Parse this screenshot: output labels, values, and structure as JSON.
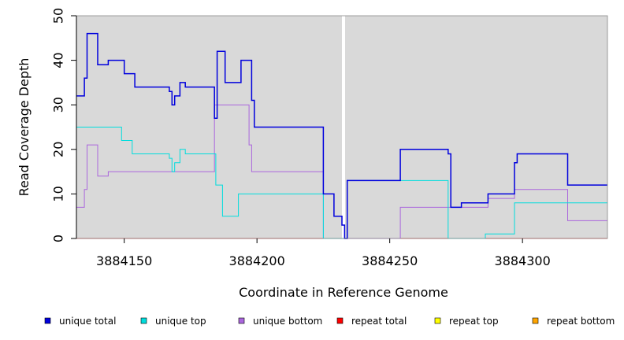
{
  "chart_data": {
    "type": "line",
    "xlabel": "Coordinate in Reference Genome",
    "ylabel": "Read Coverage Depth",
    "xlim": [
      3884132,
      3884332
    ],
    "ylim": [
      0,
      50
    ],
    "x_ticks": [
      3884150,
      3884200,
      3884250,
      3884300
    ],
    "y_ticks": [
      0,
      10,
      20,
      30,
      40,
      50
    ],
    "marker_x": 3884232,
    "background": "#d9d9d9",
    "legend_position": "bottom",
    "series": [
      {
        "name": "unique total",
        "color": "#0000dd",
        "points": [
          [
            3884132,
            32
          ],
          [
            3884135,
            36
          ],
          [
            3884136,
            46
          ],
          [
            3884139,
            46
          ],
          [
            3884140,
            39
          ],
          [
            3884143,
            39
          ],
          [
            3884144,
            40
          ],
          [
            3884149,
            40
          ],
          [
            3884150,
            37
          ],
          [
            3884153,
            37
          ],
          [
            3884154,
            34
          ],
          [
            3884166,
            34
          ],
          [
            3884167,
            33
          ],
          [
            3884168,
            30
          ],
          [
            3884169,
            32
          ],
          [
            3884171,
            35
          ],
          [
            3884173,
            34
          ],
          [
            3884183,
            34
          ],
          [
            3884184,
            27
          ],
          [
            3884185,
            42
          ],
          [
            3884187,
            42
          ],
          [
            3884188,
            35
          ],
          [
            3884192,
            35
          ],
          [
            3884194,
            40
          ],
          [
            3884197,
            40
          ],
          [
            3884198,
            31
          ],
          [
            3884199,
            25
          ],
          [
            3884211,
            25
          ],
          [
            3884224,
            25
          ],
          [
            3884225,
            10
          ],
          [
            3884228,
            10
          ],
          [
            3884229,
            5
          ],
          [
            3884231,
            5
          ],
          [
            3884232,
            3
          ],
          [
            3884233,
            0
          ],
          [
            3884234,
            13
          ],
          [
            3884249,
            13
          ],
          [
            3884253,
            13
          ],
          [
            3884254,
            20
          ],
          [
            3884262,
            20
          ],
          [
            3884271,
            20
          ],
          [
            3884272,
            19
          ],
          [
            3884273,
            7
          ],
          [
            3884276,
            7
          ],
          [
            3884277,
            8
          ],
          [
            3884286,
            8
          ],
          [
            3884287,
            10
          ],
          [
            3884296,
            10
          ],
          [
            3884297,
            17
          ],
          [
            3884298,
            19
          ],
          [
            3884304,
            19
          ],
          [
            3884316,
            19
          ],
          [
            3884317,
            12
          ],
          [
            3884332,
            12
          ]
        ]
      },
      {
        "name": "unique top",
        "color": "#00dddd",
        "points": [
          [
            3884132,
            25
          ],
          [
            3884148,
            25
          ],
          [
            3884149,
            22
          ],
          [
            3884152,
            22
          ],
          [
            3884153,
            19
          ],
          [
            3884166,
            19
          ],
          [
            3884167,
            18
          ],
          [
            3884168,
            15
          ],
          [
            3884169,
            17
          ],
          [
            3884171,
            20
          ],
          [
            3884173,
            19
          ],
          [
            3884184,
            19
          ],
          [
            3884184.5,
            12
          ],
          [
            3884186,
            12
          ],
          [
            3884187,
            5
          ],
          [
            3884192,
            5
          ],
          [
            3884193,
            10
          ],
          [
            3884205,
            10
          ],
          [
            3884213,
            10
          ],
          [
            3884224,
            10
          ],
          [
            3884225,
            0
          ],
          [
            3884233,
            0
          ],
          [
            3884234,
            13
          ],
          [
            3884250,
            13
          ],
          [
            3884262,
            13
          ],
          [
            3884271,
            13
          ],
          [
            3884272,
            0
          ],
          [
            3884285,
            0
          ],
          [
            3884286,
            1
          ],
          [
            3884296,
            1
          ],
          [
            3884297,
            8
          ],
          [
            3884332,
            8
          ]
        ]
      },
      {
        "name": "unique bottom",
        "color": "#aa66dd",
        "points": [
          [
            3884132,
            7
          ],
          [
            3884134,
            7
          ],
          [
            3884135,
            11
          ],
          [
            3884136,
            21
          ],
          [
            3884139,
            21
          ],
          [
            3884140,
            14
          ],
          [
            3884143,
            14
          ],
          [
            3884144,
            15
          ],
          [
            3884183,
            15
          ],
          [
            3884184,
            30
          ],
          [
            3884196,
            30
          ],
          [
            3884197,
            21
          ],
          [
            3884198,
            15
          ],
          [
            3884224,
            15
          ],
          [
            3884225,
            0
          ],
          [
            3884253,
            0
          ],
          [
            3884254,
            7
          ],
          [
            3884272,
            7
          ],
          [
            3884286,
            7
          ],
          [
            3884287,
            9
          ],
          [
            3884296,
            9
          ],
          [
            3884297,
            11
          ],
          [
            3884316,
            11
          ],
          [
            3884317,
            4
          ],
          [
            3884332,
            4
          ]
        ]
      },
      {
        "name": "repeat total",
        "color": "#ff0000",
        "points": [
          [
            3884132,
            0
          ],
          [
            3884332,
            0
          ]
        ]
      },
      {
        "name": "repeat top",
        "color": "#ffff00",
        "points": [
          [
            3884132,
            0
          ],
          [
            3884332,
            0
          ]
        ]
      },
      {
        "name": "repeat bottom",
        "color": "#ffa500",
        "points": [
          [
            3884132,
            0
          ],
          [
            3884332,
            0
          ]
        ]
      }
    ]
  }
}
